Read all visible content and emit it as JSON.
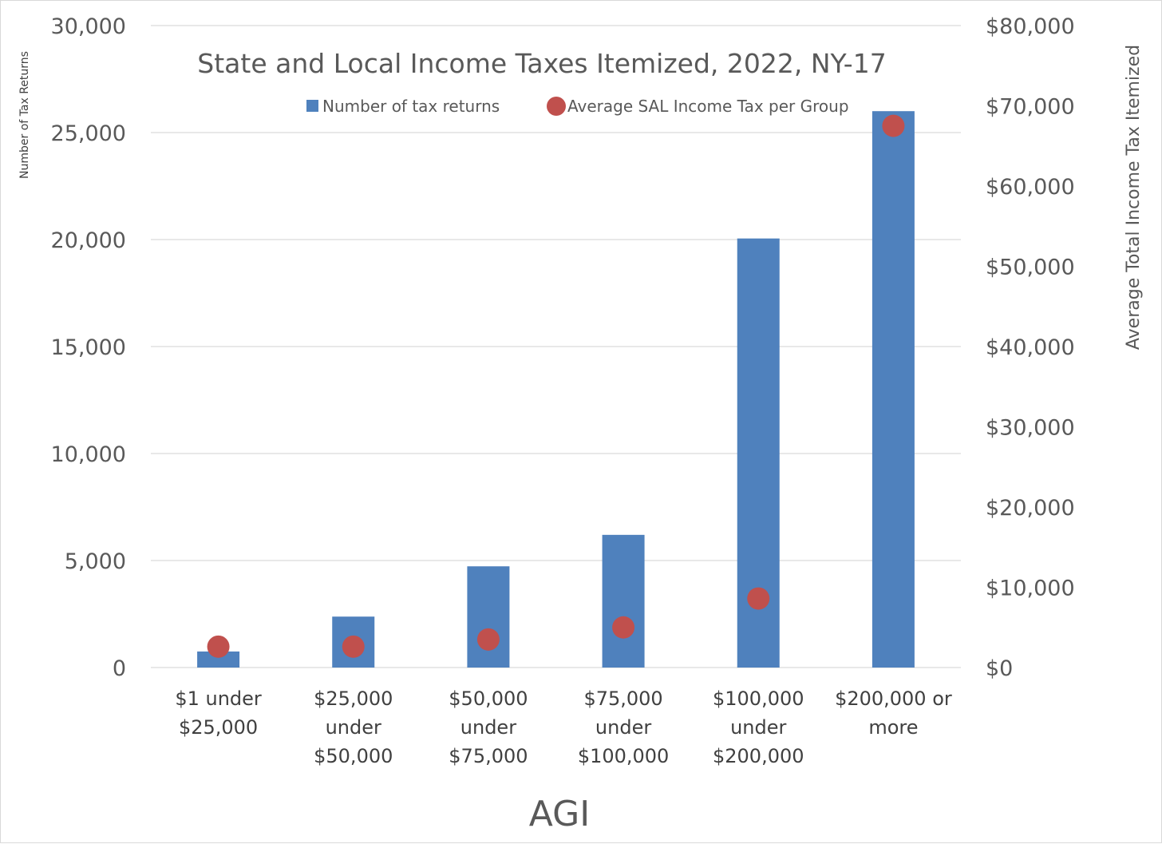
{
  "chart_data": {
    "type": "bar",
    "title": "State and Local Income Taxes Itemized, 2022, NY-17",
    "xlabel": "AGI",
    "ylabel": "Number of Tax Returns",
    "y2label": "Average Total Income Tax Itemized",
    "categories": [
      [
        "$1 under",
        "$25,000"
      ],
      [
        "$25,000",
        "under",
        "$50,000"
      ],
      [
        "$50,000",
        "under",
        "$75,000"
      ],
      [
        "$75,000",
        "under",
        "$100,000"
      ],
      [
        "$100,000",
        "under",
        "$200,000"
      ],
      [
        "$200,000 or",
        "more"
      ]
    ],
    "series": [
      {
        "name": "Number of tax returns",
        "type": "bar",
        "axis": "left",
        "color": "#4f81bd",
        "values": [
          750,
          2380,
          4730,
          6200,
          20050,
          26000
        ]
      },
      {
        "name": "Average SAL Income Tax per Group",
        "type": "scatter",
        "axis": "right",
        "color": "#c0504d",
        "values": [
          2600,
          2600,
          3500,
          5000,
          8600,
          67500
        ]
      }
    ],
    "ylim": [
      0,
      30000
    ],
    "y2lim": [
      0,
      80000
    ],
    "yticks": [
      "0",
      "5,000",
      "10,000",
      "15,000",
      "20,000",
      "25,000",
      "30,000"
    ],
    "y2ticks": [
      "$0",
      "$10,000",
      "$20,000",
      "$30,000",
      "$40,000",
      "$50,000",
      "$60,000",
      "$70,000",
      "$80,000"
    ],
    "grid": true,
    "legend_position": "top"
  }
}
